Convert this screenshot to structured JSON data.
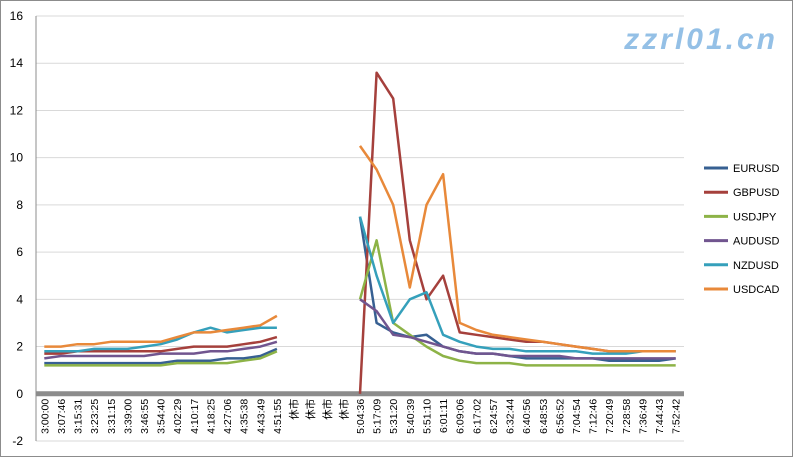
{
  "chart_data": {
    "type": "line",
    "title": "",
    "xlabel": "",
    "ylabel": "",
    "ylim": [
      -2,
      16
    ],
    "yticks": [
      -2,
      0,
      2,
      4,
      6,
      8,
      10,
      12,
      14,
      16
    ],
    "grid": "horizontal",
    "legend": "right",
    "categories": [
      "3:00:00",
      "3:07:46",
      "3:15:31",
      "3:23:25",
      "3:31:15",
      "3:39:00",
      "3:46:55",
      "3:54:40",
      "4:02:29",
      "4:10:17",
      "4:18:25",
      "4:27:06",
      "4:35:38",
      "4:43:49",
      "4:51:55",
      "休市",
      "休市",
      "休市",
      "休市",
      "5:04:36",
      "5:17:09",
      "5:31:20",
      "5:40:39",
      "5:51:10",
      "6:01:11",
      "6:09:06",
      "6:17:02",
      "6:24:57",
      "6:32:44",
      "6:40:56",
      "6:48:53",
      "6:56:52",
      "7:04:54",
      "7:12:46",
      "7:20:49",
      "7:28:58",
      "7:36:49",
      "7:44:43",
      "7:52:42"
    ],
    "series": [
      {
        "name": "EURUSD",
        "color": "#376092",
        "values": [
          1.3,
          1.3,
          1.3,
          1.3,
          1.3,
          1.3,
          1.3,
          1.3,
          1.4,
          1.4,
          1.4,
          1.5,
          1.5,
          1.6,
          1.9,
          null,
          null,
          null,
          null,
          7.5,
          3.0,
          2.6,
          2.4,
          2.5,
          2.0,
          1.8,
          1.7,
          1.7,
          1.6,
          1.5,
          1.5,
          1.5,
          1.5,
          1.5,
          1.4,
          1.4,
          1.4,
          1.4,
          1.5
        ]
      },
      {
        "name": "GBPUSD",
        "color": "#a5403c",
        "values": [
          1.7,
          1.7,
          1.8,
          1.8,
          1.8,
          1.8,
          1.8,
          1.8,
          1.9,
          2.0,
          2.0,
          2.0,
          2.1,
          2.2,
          2.4,
          null,
          null,
          null,
          null,
          0.0,
          13.6,
          12.5,
          6.5,
          4.0,
          5.0,
          2.6,
          2.5,
          2.4,
          2.3,
          2.2,
          2.2,
          2.1,
          2.0,
          1.9,
          1.8,
          1.8,
          1.8,
          1.8,
          1.8
        ]
      },
      {
        "name": "USDJPY",
        "color": "#8db347",
        "values": [
          1.2,
          1.2,
          1.2,
          1.2,
          1.2,
          1.2,
          1.2,
          1.2,
          1.3,
          1.3,
          1.3,
          1.3,
          1.4,
          1.5,
          1.8,
          null,
          null,
          null,
          null,
          4.0,
          6.5,
          3.0,
          2.5,
          2.0,
          1.6,
          1.4,
          1.3,
          1.3,
          1.3,
          1.2,
          1.2,
          1.2,
          1.2,
          1.2,
          1.2,
          1.2,
          1.2,
          1.2,
          1.2
        ]
      },
      {
        "name": "AUDUSD",
        "color": "#71558f",
        "values": [
          1.5,
          1.6,
          1.6,
          1.6,
          1.6,
          1.6,
          1.6,
          1.7,
          1.7,
          1.7,
          1.8,
          1.8,
          1.9,
          2.0,
          2.2,
          null,
          null,
          null,
          null,
          4.0,
          3.5,
          2.5,
          2.4,
          2.2,
          2.0,
          1.8,
          1.7,
          1.7,
          1.6,
          1.6,
          1.6,
          1.6,
          1.5,
          1.5,
          1.5,
          1.5,
          1.5,
          1.5,
          1.5
        ]
      },
      {
        "name": "NZDUSD",
        "color": "#35a0bb",
        "values": [
          1.8,
          1.8,
          1.8,
          1.9,
          1.9,
          1.9,
          2.0,
          2.1,
          2.3,
          2.6,
          2.8,
          2.6,
          2.7,
          2.8,
          2.8,
          null,
          null,
          null,
          null,
          7.5,
          5.0,
          3.0,
          4.0,
          4.3,
          2.5,
          2.2,
          2.0,
          1.9,
          1.9,
          1.8,
          1.8,
          1.8,
          1.8,
          1.7,
          1.7,
          1.7,
          1.8,
          1.8,
          1.8
        ]
      },
      {
        "name": "USDCAD",
        "color": "#e8893a",
        "values": [
          2.0,
          2.0,
          2.1,
          2.1,
          2.2,
          2.2,
          2.2,
          2.2,
          2.4,
          2.6,
          2.6,
          2.7,
          2.8,
          2.9,
          3.3,
          null,
          null,
          null,
          null,
          10.5,
          9.5,
          8.0,
          4.5,
          8.0,
          9.3,
          3.0,
          2.7,
          2.5,
          2.4,
          2.3,
          2.2,
          2.1,
          2.0,
          1.9,
          1.8,
          1.8,
          1.8,
          1.8,
          1.8
        ]
      }
    ]
  },
  "watermark": "zzrl01.cn"
}
